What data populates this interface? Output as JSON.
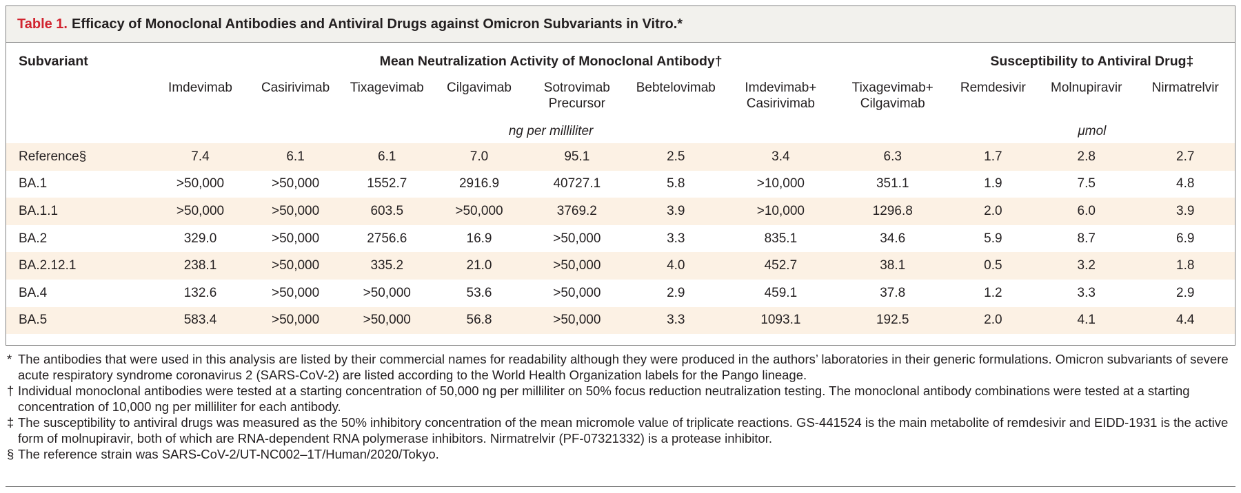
{
  "table": {
    "label": "Table 1.",
    "title": "Efficacy of Monoclonal Antibodies and Antiviral Drugs against Omicron Subvariants in Vitro.*",
    "subvariant_header": "Subvariant",
    "group_mab": "Mean Neutralization Activity of Monoclonal Antibody†",
    "group_antiviral": "Susceptibility to Antiviral Drug‡",
    "columns": [
      [
        "Imdevimab"
      ],
      [
        "Casirivimab"
      ],
      [
        "Tixagevimab"
      ],
      [
        "Cilgavimab"
      ],
      [
        "Sotrovimab",
        "Precursor"
      ],
      [
        "Bebtelovimab"
      ],
      [
        "Imdevimab+",
        "Casirivimab"
      ],
      [
        "Tixagevimab+",
        "Cilgavimab"
      ],
      [
        "Remdesivir"
      ],
      [
        "Molnupiravir"
      ],
      [
        "Nirmatrelvir"
      ]
    ],
    "unit_mab": "ng per milliliter",
    "unit_antiviral": "μmol",
    "rows": [
      {
        "name": "Reference§",
        "values": [
          "7.4",
          "6.1",
          "6.1",
          "7.0",
          "95.1",
          "2.5",
          "3.4",
          "6.3",
          "1.7",
          "2.8",
          "2.7"
        ]
      },
      {
        "name": "BA.1",
        "values": [
          ">50,000",
          ">50,000",
          "1552.7",
          "2916.9",
          "40727.1",
          "5.8",
          ">10,000",
          "351.1",
          "1.9",
          "7.5",
          "4.8"
        ]
      },
      {
        "name": "BA.1.1",
        "values": [
          ">50,000",
          ">50,000",
          "603.5",
          ">50,000",
          "3769.2",
          "3.9",
          ">10,000",
          "1296.8",
          "2.0",
          "6.0",
          "3.9"
        ]
      },
      {
        "name": "BA.2",
        "values": [
          "329.0",
          ">50,000",
          "2756.6",
          "16.9",
          ">50,000",
          "3.3",
          "835.1",
          "34.6",
          "5.9",
          "8.7",
          "6.9"
        ]
      },
      {
        "name": "BA.2.12.1",
        "values": [
          "238.1",
          ">50,000",
          "335.2",
          "21.0",
          ">50,000",
          "4.0",
          "452.7",
          "38.1",
          "0.5",
          "3.2",
          "1.8"
        ]
      },
      {
        "name": "BA.4",
        "values": [
          "132.6",
          ">50,000",
          ">50,000",
          "53.6",
          ">50,000",
          "2.9",
          "459.1",
          "37.8",
          "1.2",
          "3.3",
          "2.9"
        ]
      },
      {
        "name": "BA.5",
        "values": [
          "583.4",
          ">50,000",
          ">50,000",
          "56.8",
          ">50,000",
          "3.3",
          "1093.1",
          "192.5",
          "2.0",
          "4.1",
          "4.4"
        ]
      }
    ]
  },
  "footnotes": [
    {
      "symbol": "*",
      "text": "The antibodies that were used in this analysis are listed by their commercial names for readability although they were produced in the authors’ laboratories in their generic formulations. Omicron subvariants of severe acute respiratory syndrome coronavirus 2 (SARS-CoV-2) are listed according to the World Health Organization labels for the Pango lineage."
    },
    {
      "symbol": "†",
      "text": "Individual monoclonal antibodies were tested at a starting concentration of 50,000 ng per milliliter on 50% focus reduction neutralization testing. The monoclonal antibody combinations were tested at a starting concentration of 10,000 ng per milliliter for each antibody."
    },
    {
      "symbol": "‡",
      "text": "The susceptibility to antiviral drugs was measured as the 50% inhibitory concentration of the mean micromole value of triplicate reactions. GS-441524 is the main metabolite of remdesivir and EIDD-1931 is the active form of molnupiravir, both of which are RNA-dependent RNA polymerase inhibitors. Nirmatrelvir (PF-07321332) is a protease inhibitor."
    },
    {
      "symbol": "§",
      "text": "The reference strain was SARS-CoV-2/UT-NC002–1T/Human/2020/Tokyo."
    }
  ]
}
